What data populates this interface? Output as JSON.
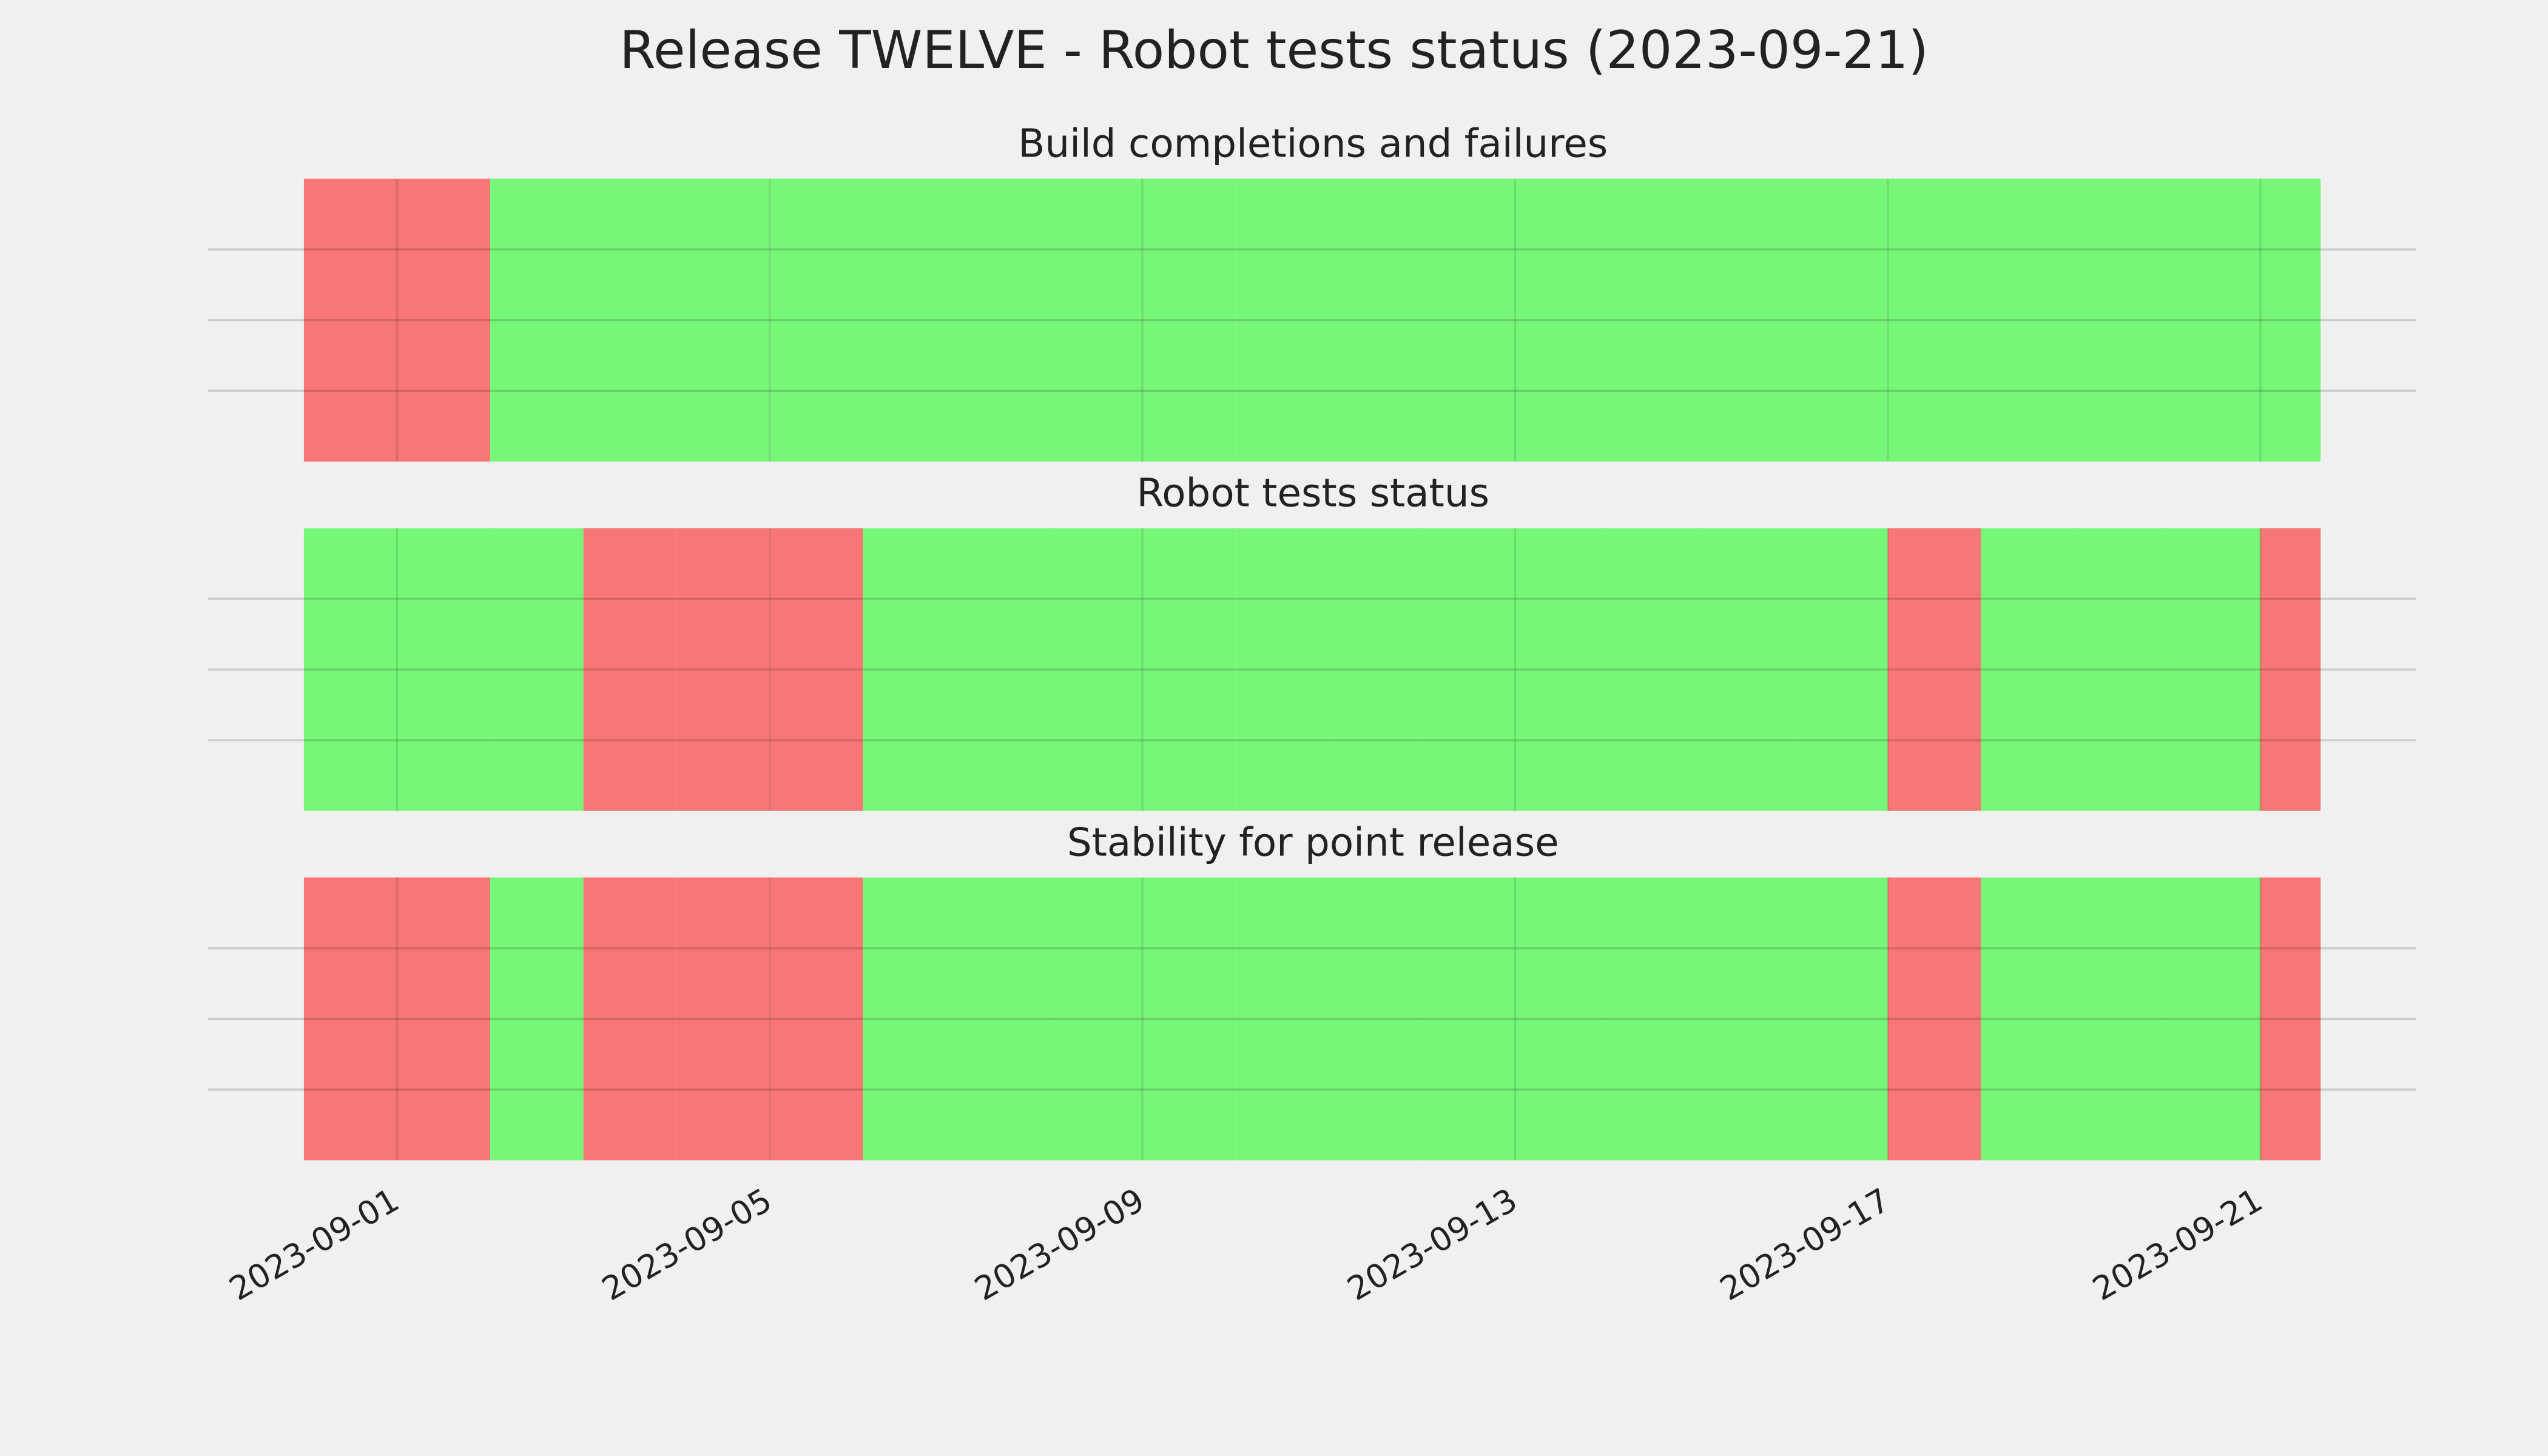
{
  "chart_data": {
    "type": "timeline",
    "title": "Release TWELVE - Robot tests status (2023-09-21)",
    "colors": [
      "#f77676",
      "#77f777"
    ],
    "xlim": [
      "2023-08-29T23:18:00Z",
      "2023-09-22T16:10:00Z"
    ],
    "xticks": [
      "2023-09-01",
      "2023-09-05",
      "2023-09-09",
      "2023-09-13",
      "2023-09-17",
      "2023-09-21"
    ],
    "ylim": [
      0,
      1
    ],
    "ygrid": [
      0.25,
      0.5,
      0.75
    ],
    "panels": [
      {
        "title": "Build completions and failures",
        "bins": [
          "2023-08-31",
          "2023-09-01",
          "2023-09-02",
          "2023-09-03",
          "2023-09-04",
          "2023-09-05",
          "2023-09-06",
          "2023-09-07",
          "2023-09-08",
          "2023-09-09",
          "2023-09-10",
          "2023-09-11",
          "2023-09-12",
          "2023-09-13",
          "2023-09-14",
          "2023-09-15",
          "2023-09-16",
          "2023-09-17",
          "2023-09-18",
          "2023-09-19",
          "2023-09-20",
          "2023-09-21",
          "2023-09-21T15:30:00Z"
        ],
        "values": [
          0,
          0,
          1,
          1,
          1,
          1,
          1,
          1,
          1,
          1,
          1,
          1,
          1,
          1,
          1,
          1,
          1,
          1,
          1,
          1,
          1,
          1
        ]
      },
      {
        "title": "Robot tests status",
        "bins": [
          "2023-08-31",
          "2023-09-01",
          "2023-09-02",
          "2023-09-03",
          "2023-09-04",
          "2023-09-05",
          "2023-09-06",
          "2023-09-07",
          "2023-09-08",
          "2023-09-09",
          "2023-09-10",
          "2023-09-11",
          "2023-09-12",
          "2023-09-13",
          "2023-09-14",
          "2023-09-15",
          "2023-09-16",
          "2023-09-17",
          "2023-09-18",
          "2023-09-19",
          "2023-09-20",
          "2023-09-21",
          "2023-09-21T15:30:00Z"
        ],
        "values": [
          1,
          1,
          1,
          0,
          0,
          0,
          1,
          1,
          1,
          1,
          1,
          1,
          1,
          1,
          1,
          1,
          1,
          0,
          1,
          1,
          1,
          0
        ]
      },
      {
        "title": "Stability for point release",
        "bins": [
          "2023-08-31",
          "2023-09-01",
          "2023-09-02",
          "2023-09-03",
          "2023-09-04",
          "2023-09-05",
          "2023-09-06",
          "2023-09-07",
          "2023-09-08",
          "2023-09-09",
          "2023-09-10",
          "2023-09-11",
          "2023-09-12",
          "2023-09-13",
          "2023-09-14",
          "2023-09-15",
          "2023-09-16",
          "2023-09-17",
          "2023-09-18",
          "2023-09-19",
          "2023-09-20",
          "2023-09-21",
          "2023-09-21T15:30:00Z"
        ],
        "values": [
          0,
          0,
          1,
          0,
          0,
          0,
          1,
          1,
          1,
          1,
          1,
          1,
          1,
          1,
          1,
          1,
          1,
          0,
          1,
          1,
          1,
          0
        ]
      }
    ]
  }
}
